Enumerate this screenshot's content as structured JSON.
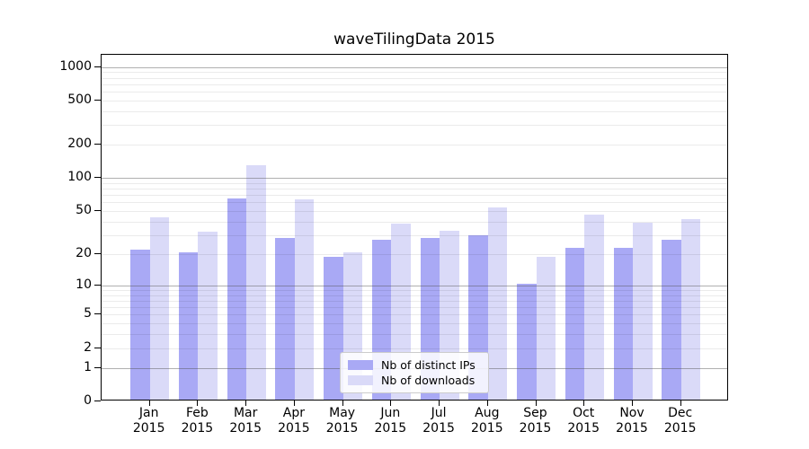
{
  "chart_data": {
    "type": "bar",
    "title": "waveTilingData 2015",
    "months": [
      "Jan",
      "Feb",
      "Mar",
      "Apr",
      "May",
      "Jun",
      "Jul",
      "Aug",
      "Sep",
      "Oct",
      "Nov",
      "Dec"
    ],
    "year": "2015",
    "categories": [
      "Jan 2015",
      "Feb 2015",
      "Mar 2015",
      "Apr 2015",
      "May 2015",
      "Jun 2015",
      "Jul 2015",
      "Aug 2015",
      "Sep 2015",
      "Oct 2015",
      "Nov 2015",
      "Dec 2015"
    ],
    "series": [
      {
        "name": "Nb of distinct IPs",
        "color": "#a9a9f5",
        "values": [
          21,
          20,
          63,
          27,
          18,
          26,
          27,
          29,
          10,
          22,
          22,
          26
        ]
      },
      {
        "name": "Nb of downloads",
        "color": "#dadaf8",
        "values": [
          42,
          31,
          126,
          62,
          20,
          37,
          32,
          52,
          18,
          45,
          38,
          41
        ]
      }
    ],
    "yscale": "log10(1+x)",
    "ylim": [
      0,
      1285
    ],
    "ytick_values": [
      0,
      1,
      2,
      5,
      10,
      20,
      50,
      100,
      200,
      500,
      1000
    ],
    "ytick_labels": [
      "0",
      "1",
      "2",
      "5",
      "10",
      "20",
      "50",
      "100",
      "200",
      "500",
      "1000"
    ],
    "grid": {
      "orientation": "horizontal",
      "major": [
        1,
        10,
        100,
        1000
      ],
      "minor": [
        2,
        3,
        4,
        5,
        6,
        7,
        8,
        9,
        20,
        30,
        40,
        50,
        60,
        70,
        80,
        90,
        200,
        300,
        400,
        500,
        600,
        700,
        800,
        900
      ]
    },
    "legend_position": "lower center"
  },
  "legend": {
    "items": [
      {
        "label": "Nb of distinct IPs",
        "color": "#a9a9f5"
      },
      {
        "label": "Nb of downloads",
        "color": "#dadaf8"
      }
    ]
  }
}
